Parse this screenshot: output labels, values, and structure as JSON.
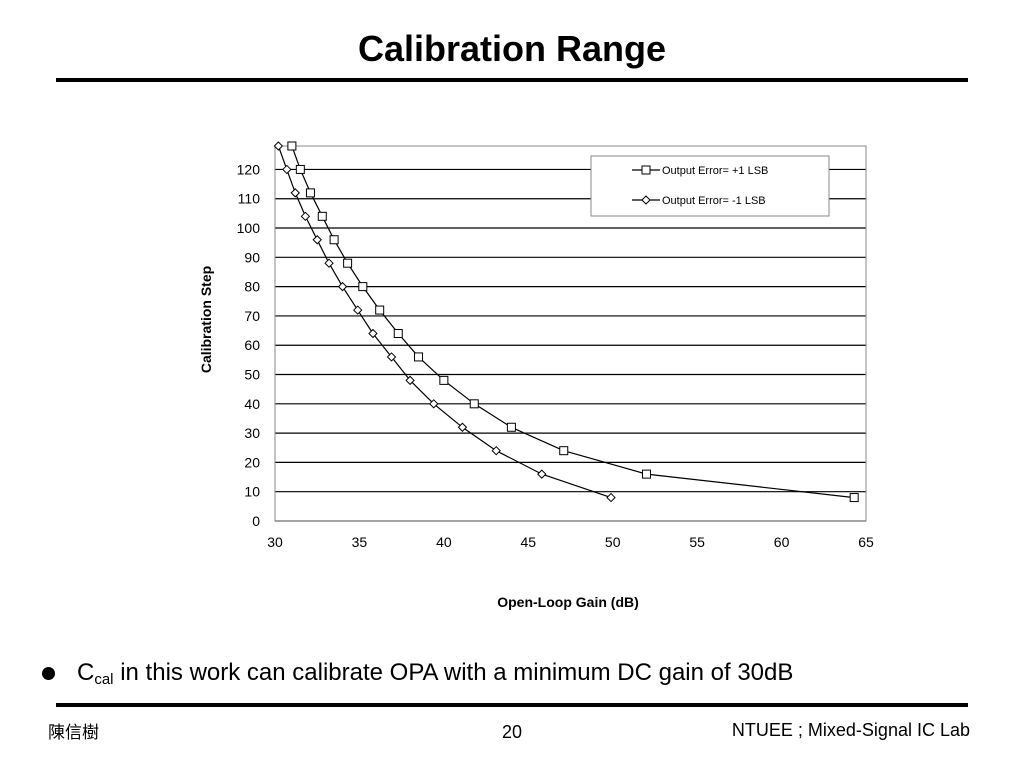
{
  "slide": {
    "title": "Calibration Range",
    "bullet": {
      "prefix": "C",
      "subscript": "cal",
      "text": " in this work can calibrate OPA with a minimum DC gain of 30dB"
    },
    "footer": {
      "author": "陳信樹",
      "page": "20",
      "lab": "NTUEE ; Mixed-Signal IC Lab"
    }
  },
  "chart_data": {
    "type": "line",
    "xlabel": "Open-Loop Gain (dB)",
    "ylabel": "Calibration Step",
    "xlim": [
      30,
      65
    ],
    "ylim": [
      0,
      128
    ],
    "xticks": [
      30,
      35,
      40,
      45,
      50,
      55,
      60,
      65
    ],
    "yticks": [
      0,
      10,
      20,
      30,
      40,
      50,
      60,
      70,
      80,
      90,
      100,
      110,
      120
    ],
    "grid": "horizontal",
    "legend": "top-right",
    "series": [
      {
        "name": "Output Error= +1 LSB",
        "marker": "square",
        "points": [
          [
            31.0,
            128
          ],
          [
            31.5,
            120
          ],
          [
            32.1,
            112
          ],
          [
            32.8,
            104
          ],
          [
            33.5,
            96
          ],
          [
            34.3,
            88
          ],
          [
            35.2,
            80
          ],
          [
            36.2,
            72
          ],
          [
            37.3,
            64
          ],
          [
            38.5,
            56
          ],
          [
            40.0,
            48
          ],
          [
            41.8,
            40
          ],
          [
            44.0,
            32
          ],
          [
            47.1,
            24
          ],
          [
            52.0,
            16
          ],
          [
            64.3,
            8
          ]
        ]
      },
      {
        "name": "Output Error= -1 LSB",
        "marker": "diamond",
        "points": [
          [
            30.2,
            128
          ],
          [
            30.7,
            120
          ],
          [
            31.2,
            112
          ],
          [
            31.8,
            104
          ],
          [
            32.5,
            96
          ],
          [
            33.2,
            88
          ],
          [
            34.0,
            80
          ],
          [
            34.9,
            72
          ],
          [
            35.8,
            64
          ],
          [
            36.9,
            56
          ],
          [
            38.0,
            48
          ],
          [
            39.4,
            40
          ],
          [
            41.1,
            32
          ],
          [
            43.1,
            24
          ],
          [
            45.8,
            16
          ],
          [
            49.9,
            8
          ]
        ]
      }
    ]
  }
}
